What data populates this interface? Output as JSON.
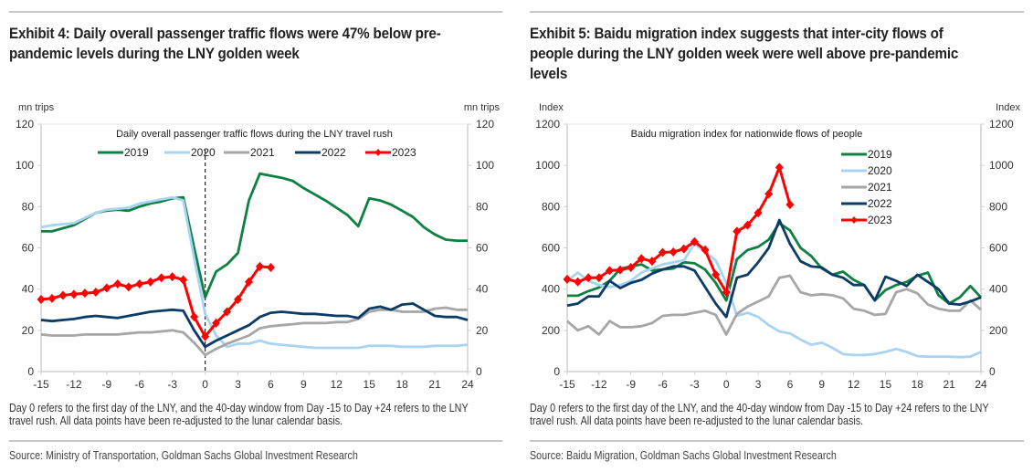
{
  "colors": {
    "2019": "#0e8040",
    "2020": "#a8d4f2",
    "2021": "#a6a6a6",
    "2022": "#0b3b66",
    "2023": "#ff0000"
  },
  "chart_data": [
    {
      "id": "exhibit4",
      "type": "line",
      "exhibit_title": "Exhibit 4: Daily overall passenger traffic flows were 47% below pre-pandemic levels during the LNY golden week",
      "title": "Daily overall passenger traffic flows during the LNY travel rush",
      "ylabel_left": "mn trips",
      "ylabel_right": "mn trips",
      "xlabel": "",
      "ylim": [
        0,
        120
      ],
      "yticks": [
        0,
        20,
        40,
        60,
        80,
        100,
        120
      ],
      "xlim": [
        -15,
        24
      ],
      "xticks": [
        -15,
        -12,
        -9,
        -6,
        -3,
        0,
        3,
        6,
        9,
        12,
        15,
        18,
        21,
        24
      ],
      "vertical_marker": {
        "x": 0,
        "style": "dashed"
      },
      "legend": {
        "placement": "top-center",
        "orientation": "horizontal",
        "entries": [
          "2019",
          "2020",
          "2021",
          "2022",
          "2023"
        ]
      },
      "grid": false,
      "x": [
        -15,
        -14,
        -13,
        -12,
        -11,
        -10,
        -9,
        -8,
        -7,
        -6,
        -5,
        -4,
        -3,
        -2,
        -1,
        0,
        1,
        2,
        3,
        4,
        5,
        6,
        7,
        8,
        9,
        10,
        11,
        12,
        13,
        14,
        15,
        16,
        17,
        18,
        19,
        20,
        21,
        22,
        23,
        24
      ],
      "series": [
        {
          "name": "2019",
          "values": [
            68,
            68,
            69.5,
            71,
            74,
            77,
            78,
            78.5,
            78,
            80,
            81.5,
            82.5,
            84,
            84.5,
            60,
            36,
            48.5,
            52,
            57.5,
            83,
            96,
            95,
            94,
            92.5,
            89,
            86,
            83,
            79.5,
            76,
            70.5,
            84,
            83,
            81,
            78,
            75,
            70,
            66.5,
            64,
            63.5,
            63.5
          ]
        },
        {
          "name": "2020",
          "values": [
            70,
            71,
            71.5,
            72,
            74.5,
            77,
            78.5,
            79,
            79.5,
            81.5,
            82.5,
            83.5,
            84.5,
            83,
            55,
            28,
            17.5,
            12,
            13.5,
            13.5,
            15,
            13.5,
            13,
            12.5,
            12,
            11.5,
            11.5,
            11.5,
            11.5,
            11.5,
            12.5,
            12.5,
            12.5,
            12,
            12,
            12,
            12.5,
            12.5,
            12.5,
            13
          ]
        },
        {
          "name": "2021",
          "values": [
            18,
            17.5,
            17.5,
            17.5,
            18,
            18,
            18,
            18,
            18.5,
            19,
            19,
            19.5,
            20,
            19,
            14,
            8,
            11,
            13.5,
            15.5,
            17.5,
            21,
            22,
            22.5,
            23,
            23.5,
            23.5,
            23.5,
            24,
            24,
            25.5,
            29,
            30,
            30,
            29,
            29,
            29,
            30.5,
            31,
            30,
            30
          ]
        },
        {
          "name": "2022",
          "values": [
            25,
            24.5,
            25,
            25.5,
            26.5,
            27,
            26.5,
            26,
            27,
            28,
            29,
            29.5,
            30,
            29.5,
            20,
            12,
            15,
            17.5,
            20,
            22.5,
            26.5,
            28.5,
            29,
            28.5,
            28,
            28,
            27.5,
            27,
            27,
            26,
            30.5,
            31.5,
            30,
            32.5,
            33,
            30,
            27,
            26.5,
            26.5,
            25
          ]
        },
        {
          "name": "2023",
          "values": [
            35,
            35.5,
            37,
            37.5,
            38,
            38.5,
            40.5,
            42.5,
            41,
            42.5,
            43.5,
            45.5,
            46,
            44.5,
            26.5,
            17,
            23.5,
            29,
            35,
            43.5,
            51,
            50.5
          ]
        }
      ],
      "note": "Day 0 refers to the first day of the LNY, and the 40-day window from Day -15 to Day +24 refers to the LNY travel rush. All data points have been re-adjusted to the lunar calendar basis.",
      "source": "Source: Ministry of Transportation, Goldman Sachs Global Investment Research"
    },
    {
      "id": "exhibit5",
      "type": "line",
      "exhibit_title": "Exhibit 5: Baidu migration index suggests that inter-city flows of people during the LNY golden week were well above pre-pandemic levels",
      "title": "Baidu migration index for nationwide flows of people",
      "ylabel_left": "Index",
      "ylabel_right": "Index",
      "xlabel": "",
      "ylim": [
        0,
        1200
      ],
      "yticks": [
        0,
        200,
        400,
        600,
        800,
        1000,
        1200
      ],
      "xlim": [
        -15,
        24
      ],
      "xticks": [
        -15,
        -12,
        -9,
        -6,
        -3,
        0,
        3,
        6,
        9,
        12,
        15,
        18,
        21,
        24
      ],
      "legend": {
        "placement": "top-right",
        "orientation": "vertical",
        "entries": [
          "2019",
          "2020",
          "2021",
          "2022",
          "2023"
        ]
      },
      "grid": false,
      "x": [
        -15,
        -14,
        -13,
        -12,
        -11,
        -10,
        -9,
        -8,
        -7,
        -6,
        -5,
        -4,
        -3,
        -2,
        -1,
        0,
        1,
        2,
        3,
        4,
        5,
        6,
        7,
        8,
        9,
        10,
        11,
        12,
        13,
        14,
        15,
        16,
        17,
        18,
        19,
        20,
        21,
        22,
        23,
        24
      ],
      "series": [
        {
          "name": "2019",
          "values": [
            368,
            368,
            390,
            408,
            440,
            498,
            510,
            520,
            490,
            495,
            500,
            530,
            525,
            495,
            430,
            345,
            545,
            590,
            605,
            640,
            720,
            685,
            600,
            560,
            500,
            470,
            485,
            445,
            420,
            345,
            395,
            420,
            435,
            465,
            480,
            370,
            330,
            360,
            415,
            360
          ]
        },
        {
          "name": "2020",
          "values": [
            440,
            480,
            440,
            420,
            410,
            420,
            440,
            480,
            500,
            520,
            530,
            540,
            620,
            580,
            540,
            430,
            270,
            285,
            265,
            225,
            195,
            185,
            155,
            130,
            140,
            115,
            85,
            80,
            80,
            85,
            95,
            110,
            95,
            75,
            72,
            72,
            72,
            70,
            72,
            95
          ]
        },
        {
          "name": "2021",
          "values": [
            245,
            200,
            220,
            180,
            245,
            215,
            215,
            220,
            235,
            270,
            275,
            275,
            285,
            295,
            275,
            180,
            280,
            315,
            340,
            365,
            455,
            465,
            385,
            370,
            375,
            370,
            355,
            305,
            295,
            275,
            280,
            385,
            400,
            380,
            325,
            305,
            295,
            295,
            345,
            300
          ]
        },
        {
          "name": "2022",
          "values": [
            320,
            330,
            365,
            365,
            440,
            405,
            430,
            445,
            475,
            495,
            510,
            510,
            490,
            410,
            330,
            265,
            455,
            470,
            530,
            600,
            735,
            620,
            535,
            510,
            505,
            470,
            455,
            420,
            420,
            345,
            460,
            440,
            415,
            470,
            435,
            400,
            330,
            325,
            340,
            360
          ]
        },
        {
          "name": "2023",
          "values": [
            448,
            435,
            455,
            455,
            490,
            493,
            505,
            548,
            535,
            578,
            580,
            595,
            630,
            590,
            470,
            385,
            680,
            710,
            770,
            862,
            990,
            810
          ]
        }
      ],
      "note": "Day 0 refers to the first day of the LNY, and the 40-day window from Day -15 to Day +24 refers to the LNY travel rush. All data points have been re-adjusted to the lunar calendar basis.",
      "source": "Source: Baidu Migration, Goldman Sachs Global Investment Research"
    }
  ]
}
